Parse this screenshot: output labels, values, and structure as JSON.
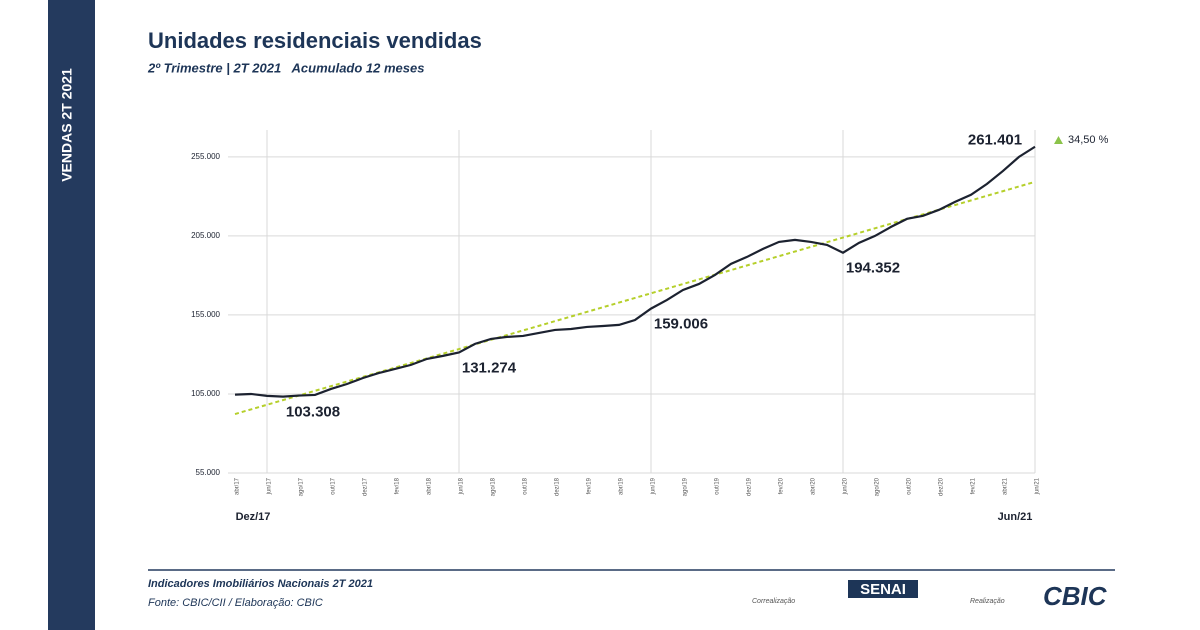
{
  "sidebar": "VENDAS  2T 2021",
  "footer": {
    "source_title": "Indicadores Imobiliários Nacionais 2T 2021",
    "source": "Fonte: CBIC/CII / Elaboração: CBIC",
    "co_label": "Correalização",
    "co_logo": "SENAI",
    "org_label": "Realização",
    "org_logo": "CBIC"
  },
  "chart_data": {
    "type": "line",
    "title": "Unidades residenciais vendidas",
    "subtitle": "2º Trimestre | 2T 2021   Acumulado 12 meses",
    "period_start": "Dez/17",
    "period_end": "Jun/21",
    "change_label": "34,50 %",
    "categories": [
      "abr/17",
      null,
      "jun/17",
      null,
      "ago/17",
      null,
      "out/17",
      null,
      "dez/17",
      null,
      "fev/18",
      null,
      "abr/18",
      null,
      "jun/18",
      null,
      "ago/18",
      null,
      "out/18",
      null,
      "dez/18",
      null,
      "fev/19",
      null,
      "abr/19",
      null,
      "jun/19",
      null,
      "ago/19",
      null,
      "out/19",
      null,
      "dez/19",
      null,
      "fev/20",
      null,
      "abr/20",
      null,
      "jun/20",
      null,
      "ago/20",
      null,
      "out/20",
      null,
      "dez/20",
      null,
      "fev/21",
      null,
      "abr/21",
      null,
      "jun/21"
    ],
    "series": [
      {
        "name": "Unidades vendidas",
        "color": "#1c2230",
        "values": [
          104600,
          105000,
          103800,
          103308,
          104000,
          104400,
          108200,
          111300,
          115100,
          118300,
          120800,
          123400,
          127200,
          129100,
          131274,
          136700,
          139800,
          141100,
          141700,
          143600,
          145500,
          146100,
          147400,
          148000,
          148700,
          151800,
          159006,
          164500,
          170800,
          174600,
          180300,
          187300,
          191700,
          196800,
          201200,
          202500,
          201200,
          199300,
          194352,
          200600,
          205000,
          210700,
          215800,
          217700,
          221500,
          226500,
          231000,
          237900,
          246100,
          255000,
          261401
        ],
        "value_labels": [
          null,
          null,
          null,
          "103.308",
          null,
          null,
          null,
          null,
          null,
          null,
          null,
          null,
          null,
          null,
          "131.274",
          null,
          null,
          null,
          null,
          null,
          null,
          null,
          null,
          null,
          null,
          null,
          "159.006",
          null,
          null,
          null,
          null,
          null,
          null,
          null,
          null,
          null,
          null,
          null,
          "194.352",
          null,
          null,
          null,
          null,
          null,
          null,
          null,
          null,
          null,
          null,
          null,
          "261.401"
        ]
      }
    ],
    "trendline": {
      "color": "#b5cf2a",
      "values": [
        92300,
        239200
      ]
    },
    "change_color": "#8bc34a",
    "ylim": [
      55000,
      272000
    ],
    "yticks": [
      {
        "value": 55000,
        "label": "55.000"
      },
      {
        "value": 105000,
        "label": "105.000"
      },
      {
        "value": 155000,
        "label": "155.000"
      },
      {
        "value": 205000,
        "label": "205.000"
      },
      {
        "value": 255000,
        "label": "255.000"
      }
    ],
    "grid": true
  }
}
